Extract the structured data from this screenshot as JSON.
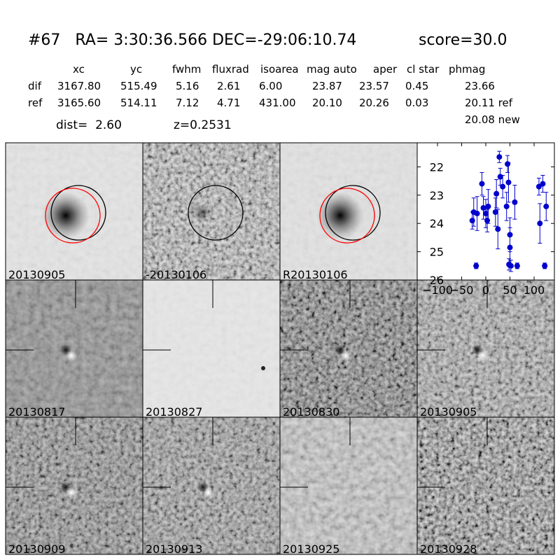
{
  "header": {
    "title": "#67   RA= 3:30:36.566 DEC=-29:06:10.74",
    "score": "score=30.0"
  },
  "table": {
    "columns": [
      "xc",
      "yc",
      "fwhm",
      "fluxrad",
      "isoarea",
      "mag auto",
      "aper",
      "cl star",
      "phmag"
    ],
    "rows": [
      {
        "label": "dif",
        "cells": [
          "3167.80",
          "515.49",
          "5.16",
          "2.61",
          "6.00",
          "23.87",
          "23.57",
          "0.45",
          "23.66"
        ]
      },
      {
        "label": "ref",
        "cells": [
          "3165.60",
          "514.11",
          "7.12",
          "4.71",
          "431.00",
          "20.10",
          "20.26",
          "0.03",
          "20.11 ref"
        ]
      }
    ],
    "phmag_new": "20.08 new"
  },
  "dist": "dist=  2.60",
  "z": "z=0.2531",
  "panels": [
    {
      "label": "20130905"
    },
    {
      "label": "-20130106"
    },
    {
      "label": "R20130106"
    },
    {
      "label": "20130817"
    },
    {
      "label": "20130827"
    },
    {
      "label": "20130830"
    },
    {
      "label": "20130905",
      "label_color": "#ff0000"
    },
    {
      "label": "20130909"
    },
    {
      "label": "20130913"
    },
    {
      "label": "20130925"
    },
    {
      "label": "20130928"
    }
  ],
  "chart_data": {
    "type": "scatter",
    "color": "#0000cc",
    "y_inverted": true,
    "xlim": [
      -142,
      142
    ],
    "ylim": [
      21.15,
      26
    ],
    "xticks": [
      {
        "value": -100,
        "label": "−100"
      },
      {
        "value": -50,
        "label": "−50"
      },
      0,
      50,
      100
    ],
    "yticks": [
      22,
      23,
      24,
      25,
      26
    ],
    "x": [
      -28,
      -25,
      -20,
      -18,
      -8,
      -5,
      0,
      3,
      5,
      20,
      22,
      25,
      28,
      30,
      35,
      43,
      45,
      47,
      48,
      50,
      50,
      52,
      60,
      65,
      110,
      112,
      118,
      122,
      125
    ],
    "values": [
      23.9,
      23.6,
      25.5,
      23.65,
      22.6,
      23.45,
      23.65,
      23.9,
      23.4,
      23.6,
      22.95,
      24.2,
      21.65,
      22.35,
      22.7,
      23.4,
      21.9,
      22.55,
      25.45,
      24.4,
      24.85,
      25.5,
      23.25,
      25.5,
      22.7,
      24.0,
      22.6,
      25.5,
      23.4
    ],
    "errors": [
      0.3,
      0.5,
      0.1,
      0.6,
      0.4,
      0.4,
      0.5,
      0.4,
      0.6,
      0.5,
      0.5,
      0.7,
      0.2,
      0.3,
      0.4,
      0.5,
      0.3,
      0.7,
      0.2,
      0.6,
      0.7,
      0.2,
      0.6,
      0.1,
      0.3,
      0.7,
      0.3,
      0.1,
      0.5
    ]
  }
}
